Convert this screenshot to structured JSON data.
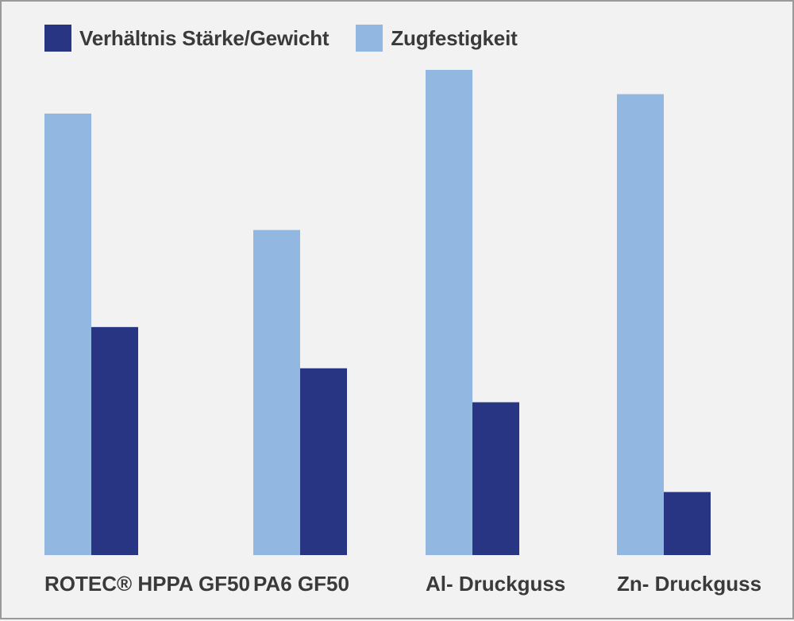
{
  "chart_data": {
    "type": "bar",
    "categories": [
      "ROTEC® HPPA GF50",
      "PA6 GF50",
      "Al- Druckguss",
      "Zn- Druckguss"
    ],
    "series": [
      {
        "name": "Zugfestigkeit",
        "color": "#92b7e1",
        "values": [
          0.91,
          0.67,
          1.0,
          0.95
        ]
      },
      {
        "name": "Verhältnis Stärke/Gewicht",
        "color": "#283583",
        "values": [
          0.47,
          0.385,
          0.315,
          0.13
        ]
      }
    ],
    "ylim": [
      0,
      1
    ],
    "grid": false,
    "legend_position": "top-left"
  },
  "legend": {
    "items": [
      {
        "label": "Verhältnis Stärke/Gewicht",
        "color": "#283583"
      },
      {
        "label": "Zugfestigkeit",
        "color": "#92b7e1"
      }
    ]
  }
}
